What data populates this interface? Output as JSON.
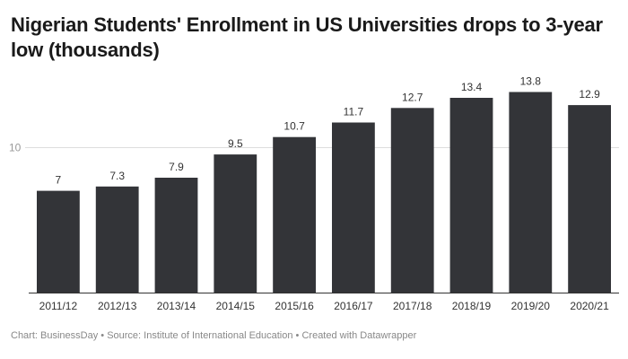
{
  "chart_data": {
    "type": "bar",
    "title": "Nigerian Students' Enrollment in US Universities drops to 3-year low (thousands)",
    "categories": [
      "2011/12",
      "2012/13",
      "2013/14",
      "2014/15",
      "2015/16",
      "2016/17",
      "2017/18",
      "2018/19",
      "2019/20",
      "2020/21"
    ],
    "values": [
      7,
      7.3,
      7.9,
      9.5,
      10.7,
      11.7,
      12.7,
      13.4,
      13.8,
      12.9
    ],
    "value_labels": [
      "7",
      "7.3",
      "7.9",
      "9.5",
      "10.7",
      "11.7",
      "12.7",
      "13.4",
      "13.8",
      "12.9"
    ],
    "yticks": [
      10
    ],
    "ytick_labels": [
      "10"
    ],
    "ylim": [
      0,
      14.2
    ],
    "xlabel": "",
    "ylabel": "",
    "grid": true,
    "bar_color": "#333438"
  },
  "footer": {
    "chart_prefix": "Chart: ",
    "chart_by": "BusinessDay",
    "sep1": " • ",
    "source_prefix": "Source: ",
    "source": "Institute of International Education",
    "sep2": " • ",
    "created_with": "Created with Datawrapper"
  }
}
